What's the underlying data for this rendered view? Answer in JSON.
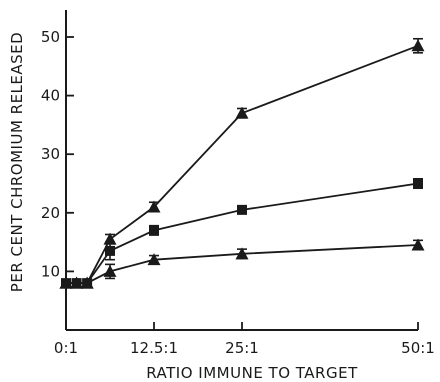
{
  "chart_data": {
    "type": "line",
    "xlabel": "RATIO IMMUNE TO TARGET",
    "ylabel": "PER CENT CHROMIUM RELEASED",
    "x_ticks": [
      {
        "value": 0,
        "label": "0:1"
      },
      {
        "value": 12.5,
        "label": "12.5:1"
      },
      {
        "value": 25,
        "label": "25:1"
      },
      {
        "value": 50,
        "label": "50:1"
      }
    ],
    "y_ticks": [
      10,
      20,
      30,
      40,
      50
    ],
    "xlim": [
      0,
      50
    ],
    "ylim": [
      0,
      52
    ],
    "grid": false,
    "series": [
      {
        "marker": "triangle",
        "x": [
          0,
          1.5,
          3,
          6.25,
          12.5,
          25,
          50
        ],
        "values": [
          8,
          8,
          8,
          15.5,
          21,
          37,
          48.5
        ],
        "errors": [
          0,
          0,
          0,
          0.8,
          0.8,
          0.8,
          1.2
        ]
      },
      {
        "marker": "square",
        "x": [
          0,
          1.5,
          3,
          6.25,
          12.5,
          25,
          50
        ],
        "values": [
          8,
          8,
          8,
          13.5,
          17,
          20.5,
          25
        ],
        "errors": [
          0,
          0,
          0,
          1.5,
          0.8,
          0.6,
          0.8
        ]
      },
      {
        "marker": "triangle",
        "x": [
          0,
          1.5,
          3,
          6.25,
          12.5,
          25,
          50
        ],
        "values": [
          8,
          8,
          8,
          10,
          12,
          13,
          14.5
        ],
        "errors": [
          0,
          0,
          0,
          1.2,
          0.7,
          0.8,
          0.8
        ]
      }
    ]
  }
}
